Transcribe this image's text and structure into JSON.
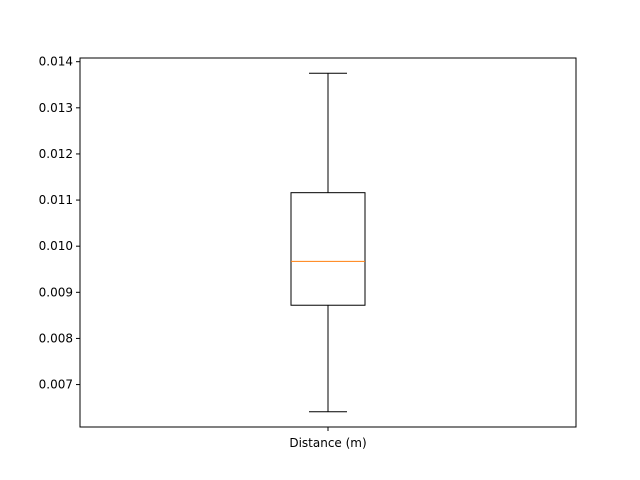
{
  "chart_data": {
    "type": "boxplot",
    "title": "",
    "xlabel": "",
    "ylabel": "",
    "categories": [
      "Distance (m)"
    ],
    "boxes": [
      {
        "label": "Distance (m)",
        "whisker_low": 0.00641,
        "q1": 0.00872,
        "median": 0.00967,
        "q3": 0.01116,
        "whisker_high": 0.01375
      }
    ],
    "ylim": [
      0.00608,
      0.01408
    ],
    "yticks": [
      0.007,
      0.008,
      0.009,
      0.01,
      0.011,
      0.012,
      0.013,
      0.014
    ],
    "ytick_labels": [
      "0.007",
      "0.008",
      "0.009",
      "0.010",
      "0.011",
      "0.012",
      "0.013",
      "0.014"
    ],
    "grid": false,
    "colors": {
      "box": "#000000",
      "median": "#ff7f0e",
      "axes": "#000000"
    }
  }
}
